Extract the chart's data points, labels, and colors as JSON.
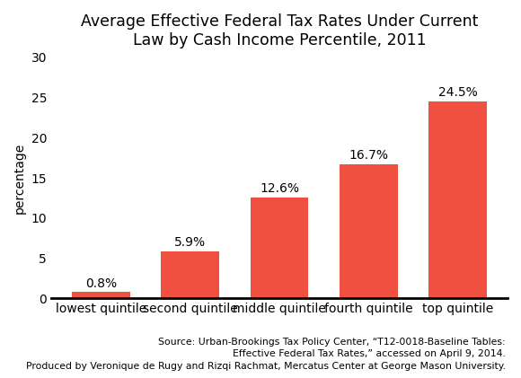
{
  "categories": [
    "lowest quintile",
    "second quintile",
    "middle quintile",
    "fourth quintile",
    "top quintile"
  ],
  "values": [
    0.8,
    5.9,
    12.6,
    16.7,
    24.5
  ],
  "bar_color": "#f05040",
  "title_line1": "Average Effective Federal Tax Rates Under Current",
  "title_line2": "Law by Cash Income Percentile, 2011",
  "ylabel": "percentage",
  "ylim": [
    0,
    30
  ],
  "yticks": [
    0,
    5,
    10,
    15,
    20,
    25,
    30
  ],
  "source_line1": "Source: Urban-Brookings Tax Policy Center, “T12-0018-Baseline Tables:",
  "source_line2": "Effective Federal Tax Rates,” accessed on April 9, 2014.",
  "source_line3": "Produced by Veronique de Rugy and Rizqi Rachmat, Mercatus Center at George Mason University.",
  "background_color": "#ffffff",
  "title_fontsize": 12.5,
  "axis_label_fontsize": 10,
  "tick_fontsize": 10,
  "value_fontsize": 10,
  "source_fontsize": 7.8,
  "bar_width": 0.65
}
